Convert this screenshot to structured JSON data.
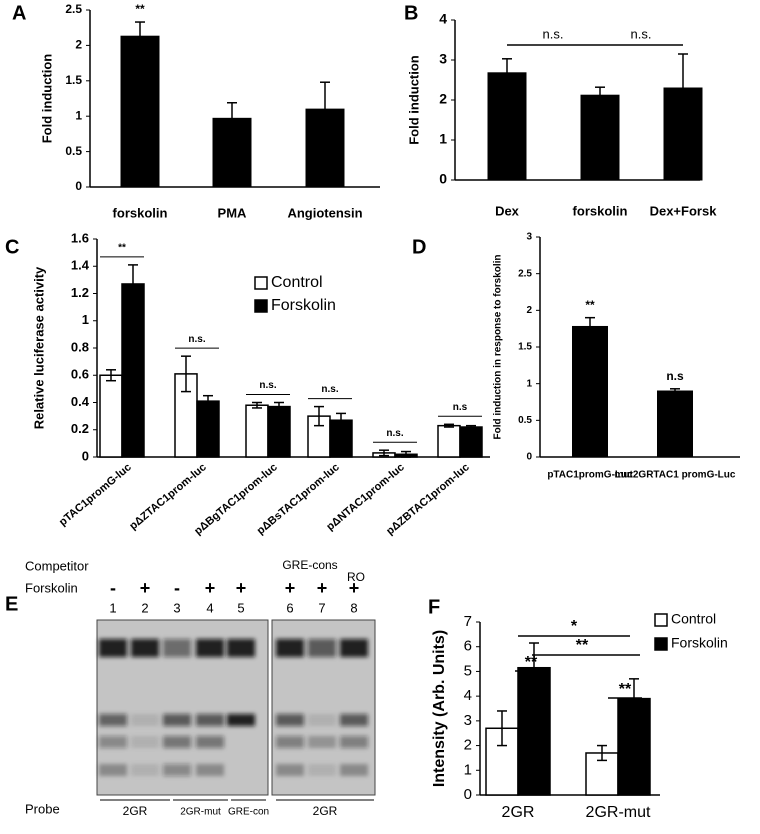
{
  "chart_data": [
    {
      "type": "bar",
      "panel": "A",
      "ylabel": "Fold induction",
      "categories": [
        "forskolin",
        "PMA",
        "Angiotensin"
      ],
      "values": [
        2.13,
        0.97,
        1.1
      ],
      "errors": [
        0.2,
        0.22,
        0.38
      ],
      "color": "#000000",
      "ylim": [
        0,
        2.5
      ],
      "yticks": [
        0,
        0.5,
        1,
        1.5,
        2,
        2.5
      ],
      "annotations": [
        "**"
      ]
    },
    {
      "type": "bar",
      "panel": "B",
      "ylabel": "Fold induction",
      "categories": [
        "Dex",
        "forskolin",
        "Dex+Forsk"
      ],
      "values": [
        2.68,
        2.12,
        2.3
      ],
      "errors": [
        0.35,
        0.2,
        0.85
      ],
      "color": "#000000",
      "ylim": [
        0,
        4
      ],
      "yticks": [
        0,
        1,
        2,
        3,
        4
      ],
      "annotations": [
        "n.s.",
        "n.s."
      ]
    },
    {
      "type": "grouped-bar",
      "panel": "C",
      "ylabel": "Relative luciferase activity",
      "categories": [
        "pTAC1promG-luc",
        "pΔZTAC1prom-luc",
        "pΔBgTAC1prom-luc",
        "pΔBsTAC1prom-luc",
        "pΔNTAC1prom-luc",
        "pΔZBTAC1prom-luc"
      ],
      "series": [
        {
          "name": "Control",
          "color": "#ffffff",
          "values": [
            0.6,
            0.61,
            0.38,
            0.3,
            0.03,
            0.23
          ],
          "errors": [
            0.04,
            0.13,
            0.02,
            0.07,
            0.02,
            0.01
          ]
        },
        {
          "name": "Forskolin",
          "color": "#000000",
          "values": [
            1.27,
            0.41,
            0.37,
            0.27,
            0.02,
            0.22
          ],
          "errors": [
            0.14,
            0.04,
            0.03,
            0.05,
            0.02,
            0.01
          ]
        }
      ],
      "ylim": [
        0,
        1.6
      ],
      "yticks": [
        0,
        0.2,
        0.4,
        0.6,
        0.8,
        1,
        1.2,
        1.4,
        1.6
      ],
      "annotations": [
        "**",
        "n.s.",
        "n.s.",
        "n.s.",
        "n.s.",
        "n.s"
      ]
    },
    {
      "type": "bar",
      "panel": "D",
      "ylabel": "Fold induction in response to forskolin",
      "categories": [
        "pTAC1promG-Luc",
        "mut2GRTAC1 promG-Luc"
      ],
      "values": [
        1.78,
        0.9
      ],
      "errors": [
        0.12,
        0.03
      ],
      "color": "#000000",
      "ylim": [
        0,
        3
      ],
      "yticks": [
        0,
        0.5,
        1,
        1.5,
        2,
        2.5,
        3
      ],
      "annotations": [
        "**",
        "n.s"
      ]
    },
    {
      "type": "grouped-bar",
      "panel": "F",
      "ylabel": "Intensity (Arb. Units)",
      "categories": [
        "2GR",
        "2GR-mut"
      ],
      "series": [
        {
          "name": "Control",
          "color": "#ffffff",
          "values": [
            2.7,
            1.7
          ],
          "errors": [
            0.7,
            0.3
          ]
        },
        {
          "name": "Forskolin",
          "color": "#000000",
          "values": [
            5.15,
            3.9
          ],
          "errors": [
            1.0,
            0.8
          ]
        }
      ],
      "ylim": [
        0,
        7
      ],
      "yticks": [
        0,
        1,
        2,
        3,
        4,
        5,
        6,
        7
      ],
      "annotations": [
        "*",
        "**",
        "**",
        "**"
      ]
    }
  ],
  "gel": {
    "panel": "E",
    "competitor_label": "Competitor",
    "forskolin_label": "Forskolin",
    "forskolin": [
      "-",
      "+",
      "-",
      "+",
      "+",
      "+",
      "+",
      "+"
    ],
    "lanes": [
      "1",
      "2",
      "3",
      "4",
      "5",
      "6",
      "7",
      "8"
    ],
    "competitors": [
      "GRE-cons",
      "RO"
    ],
    "probe_label": "Probe",
    "probes": [
      "2GR",
      "2GR-mut",
      "GRE-con",
      "2GR"
    ]
  }
}
